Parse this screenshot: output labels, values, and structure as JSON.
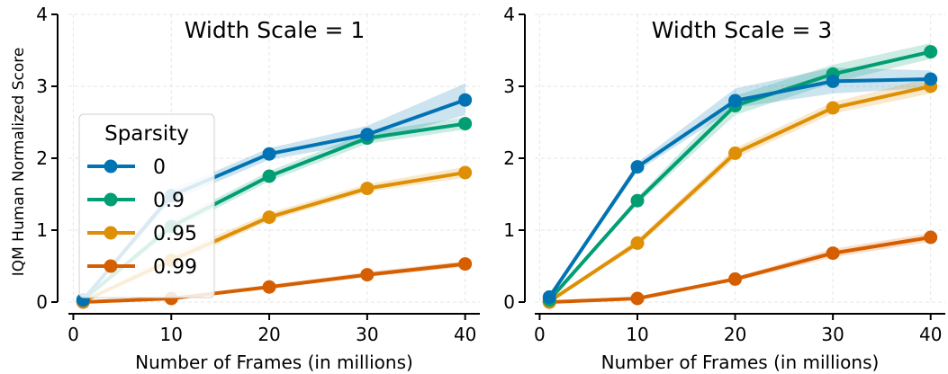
{
  "chart_data": [
    {
      "type": "line",
      "title": "Width Scale = 1",
      "xlabel": "Number of Frames (in millions)",
      "ylabel": "IQM Human Normalized Score",
      "xlim": [
        -0.5,
        41.5
      ],
      "ylim": [
        0,
        4
      ],
      "xticks": [
        0,
        10,
        20,
        30,
        40
      ],
      "yticks": [
        0,
        1,
        2,
        3,
        4
      ],
      "grid": true,
      "legend": {
        "title": "Sparsity",
        "placement": "center-left"
      },
      "x": [
        1,
        10,
        20,
        30,
        40
      ],
      "series": [
        {
          "name": "0",
          "color": "#0173b2",
          "values": [
            0.03,
            1.48,
            2.06,
            2.33,
            2.81
          ],
          "lower": [
            0.02,
            1.4,
            1.98,
            2.22,
            2.6
          ],
          "upper": [
            0.04,
            1.56,
            2.14,
            2.45,
            3.04
          ]
        },
        {
          "name": "0.9",
          "color": "#029e73",
          "values": [
            0.03,
            1.05,
            1.75,
            2.28,
            2.48
          ],
          "lower": [
            0.02,
            0.98,
            1.68,
            2.2,
            2.4
          ],
          "upper": [
            0.04,
            1.12,
            1.82,
            2.36,
            2.57
          ]
        },
        {
          "name": "0.95",
          "color": "#de8f05",
          "values": [
            0.01,
            0.58,
            1.18,
            1.58,
            1.8
          ],
          "lower": [
            0.005,
            0.52,
            1.13,
            1.53,
            1.73
          ],
          "upper": [
            0.02,
            0.66,
            1.24,
            1.64,
            1.88
          ]
        },
        {
          "name": "0.99",
          "color": "#d55e00",
          "values": [
            0.0,
            0.05,
            0.21,
            0.38,
            0.53
          ],
          "lower": [
            0.0,
            0.04,
            0.18,
            0.35,
            0.49
          ],
          "upper": [
            0.01,
            0.07,
            0.24,
            0.42,
            0.57
          ]
        }
      ]
    },
    {
      "type": "line",
      "title": "Width Scale = 3",
      "xlabel": "Number of Frames (in millions)",
      "ylabel": "",
      "xlim": [
        -0.5,
        41.5
      ],
      "ylim": [
        0,
        4
      ],
      "xticks": [
        0,
        10,
        20,
        30,
        40
      ],
      "yticks": [
        0,
        1,
        2,
        3,
        4
      ],
      "grid": true,
      "x": [
        1,
        10,
        20,
        30,
        40
      ],
      "series": [
        {
          "name": "0",
          "color": "#0173b2",
          "values": [
            0.07,
            1.88,
            2.8,
            3.07,
            3.1
          ],
          "lower": [
            0.05,
            1.82,
            2.7,
            2.9,
            2.98
          ],
          "upper": [
            0.09,
            1.94,
            2.97,
            3.26,
            3.22
          ]
        },
        {
          "name": "0.9",
          "color": "#029e73",
          "values": [
            0.03,
            1.41,
            2.73,
            3.17,
            3.48
          ],
          "lower": [
            0.02,
            1.36,
            2.6,
            3.05,
            3.38
          ],
          "upper": [
            0.04,
            1.46,
            2.87,
            3.3,
            3.6
          ]
        },
        {
          "name": "0.95",
          "color": "#de8f05",
          "values": [
            0.01,
            0.82,
            2.07,
            2.7,
            3.0
          ],
          "lower": [
            0.005,
            0.77,
            2.0,
            2.62,
            2.9
          ],
          "upper": [
            0.02,
            0.87,
            2.14,
            2.78,
            3.12
          ]
        },
        {
          "name": "0.99",
          "color": "#d55e00",
          "values": [
            0.0,
            0.05,
            0.32,
            0.68,
            0.9
          ],
          "lower": [
            0.0,
            0.04,
            0.29,
            0.62,
            0.84
          ],
          "upper": [
            0.01,
            0.06,
            0.35,
            0.74,
            0.96
          ]
        }
      ]
    }
  ]
}
